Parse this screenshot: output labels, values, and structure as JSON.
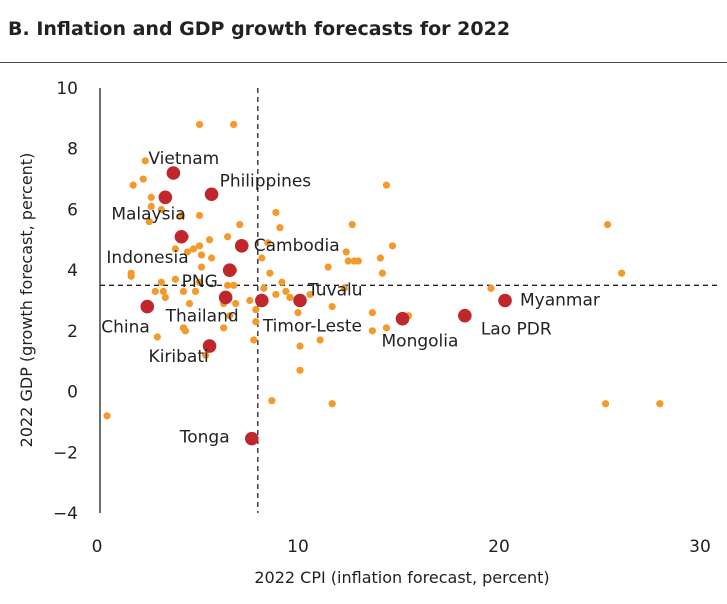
{
  "chart_data": {
    "type": "scatter",
    "title": "B. Inflation and GDP growth forecasts for 2022",
    "xlabel": "2022 CPI (inflation forecast, percent)",
    "ylabel": "2022 GDP (growth forecast, percent)",
    "xlim": [
      0,
      30
    ],
    "ylim": [
      -4,
      10
    ],
    "xticks": [
      0,
      10,
      20,
      30
    ],
    "yticks": [
      10,
      8,
      6,
      4,
      2,
      0,
      -2,
      -4
    ],
    "ytick_labels": [
      "10",
      "8",
      "6",
      "4",
      "2",
      "0",
      "−2",
      "−4"
    ],
    "reference_lines": {
      "x": 8,
      "y": 3.5
    },
    "grid": false,
    "colors": {
      "highlighted": "#c0272d",
      "other": "#f39a2b"
    },
    "highlighted": [
      {
        "label": "Vietnam",
        "x": 3.8,
        "y": 7.2
      },
      {
        "label": "Philippines",
        "x": 5.7,
        "y": 6.5
      },
      {
        "label": "Malaysia",
        "x": 3.4,
        "y": 6.4
      },
      {
        "label": "Indonesia",
        "x": 4.2,
        "y": 5.1
      },
      {
        "label": "Cambodia",
        "x": 7.2,
        "y": 4.8
      },
      {
        "label": "PNG",
        "x": 6.6,
        "y": 4.0
      },
      {
        "label": "Thailand",
        "x": 6.4,
        "y": 3.1
      },
      {
        "label": "China",
        "x": 2.5,
        "y": 2.8
      },
      {
        "label": "Timor-Leste",
        "x": 8.2,
        "y": 3.0
      },
      {
        "label": "Tuvalu",
        "x": 10.1,
        "y": 3.0
      },
      {
        "label": "Mongolia",
        "x": 15.2,
        "y": 2.4
      },
      {
        "label": "Lao PDR",
        "x": 18.3,
        "y": 2.5
      },
      {
        "label": "Myanmar",
        "x": 20.3,
        "y": 3.0
      },
      {
        "label": "Kiribati",
        "x": 5.6,
        "y": 1.5
      },
      {
        "label": "Tonga",
        "x": 7.7,
        "y": -1.55
      }
    ],
    "others": [
      [
        5.1,
        8.8
      ],
      [
        6.8,
        8.8
      ],
      [
        2.4,
        7.6
      ],
      [
        1.8,
        6.8
      ],
      [
        2.3,
        7.0
      ],
      [
        2.7,
        6.4
      ],
      [
        0.5,
        -0.8
      ],
      [
        25.4,
        5.5
      ],
      [
        26.1,
        3.9
      ],
      [
        25.3,
        -0.4
      ],
      [
        28.0,
        -0.4
      ],
      [
        19.6,
        3.4
      ],
      [
        14.4,
        6.8
      ],
      [
        12.7,
        5.5
      ],
      [
        14.7,
        4.8
      ],
      [
        14.1,
        4.4
      ],
      [
        14.2,
        3.9
      ],
      [
        12.4,
        4.6
      ],
      [
        12.5,
        4.3
      ],
      [
        12.8,
        4.3
      ],
      [
        13.0,
        4.3
      ],
      [
        11.5,
        4.1
      ],
      [
        10.0,
        2.6
      ],
      [
        10.1,
        1.5
      ],
      [
        10.1,
        0.7
      ],
      [
        8.7,
        -0.3
      ],
      [
        11.7,
        -0.4
      ],
      [
        11.1,
        1.7
      ],
      [
        11.7,
        2.8
      ],
      [
        13.7,
        2.6
      ],
      [
        13.7,
        2.0
      ],
      [
        14.4,
        2.1
      ],
      [
        15.5,
        2.5
      ],
      [
        12.3,
        3.4
      ],
      [
        8.9,
        5.9
      ],
      [
        9.1,
        5.4
      ],
      [
        8.5,
        4.9
      ],
      [
        8.2,
        4.4
      ],
      [
        8.6,
        3.9
      ],
      [
        9.2,
        3.6
      ],
      [
        9.4,
        3.3
      ],
      [
        8.3,
        3.4
      ],
      [
        7.6,
        3.0
      ],
      [
        7.9,
        2.7
      ],
      [
        7.9,
        2.3
      ],
      [
        7.8,
        1.7
      ],
      [
        5.1,
        5.8
      ],
      [
        7.1,
        5.5
      ],
      [
        6.5,
        5.1
      ],
      [
        5.6,
        5.0
      ],
      [
        4.8,
        4.7
      ],
      [
        5.2,
        4.5
      ],
      [
        5.7,
        4.4
      ],
      [
        5.2,
        4.1
      ],
      [
        4.6,
        2.9
      ],
      [
        1.7,
        3.9
      ],
      [
        1.7,
        3.8
      ],
      [
        3.2,
        3.6
      ],
      [
        3.9,
        3.7
      ],
      [
        2.9,
        3.3
      ],
      [
        3.3,
        3.3
      ],
      [
        4.3,
        3.3
      ],
      [
        3.4,
        3.1
      ],
      [
        4.9,
        3.3
      ],
      [
        5.1,
        3.6
      ],
      [
        6.5,
        3.5
      ],
      [
        6.8,
        3.5
      ],
      [
        6.9,
        2.9
      ],
      [
        6.3,
        2.9
      ],
      [
        6.6,
        2.5
      ],
      [
        6.3,
        2.1
      ],
      [
        4.3,
        2.1
      ],
      [
        4.4,
        2.0
      ],
      [
        3.0,
        1.8
      ],
      [
        5.4,
        1.2
      ],
      [
        4.2,
        5.8
      ],
      [
        3.2,
        6.0
      ],
      [
        2.6,
        5.6
      ],
      [
        2.7,
        6.1
      ],
      [
        4.4,
        5.1
      ],
      [
        5.1,
        4.8
      ],
      [
        3.9,
        4.7
      ],
      [
        4.5,
        4.6
      ],
      [
        6.8,
        4.0
      ],
      [
        8.9,
        3.2
      ],
      [
        10.6,
        3.2
      ],
      [
        9.6,
        3.1
      ]
    ]
  }
}
